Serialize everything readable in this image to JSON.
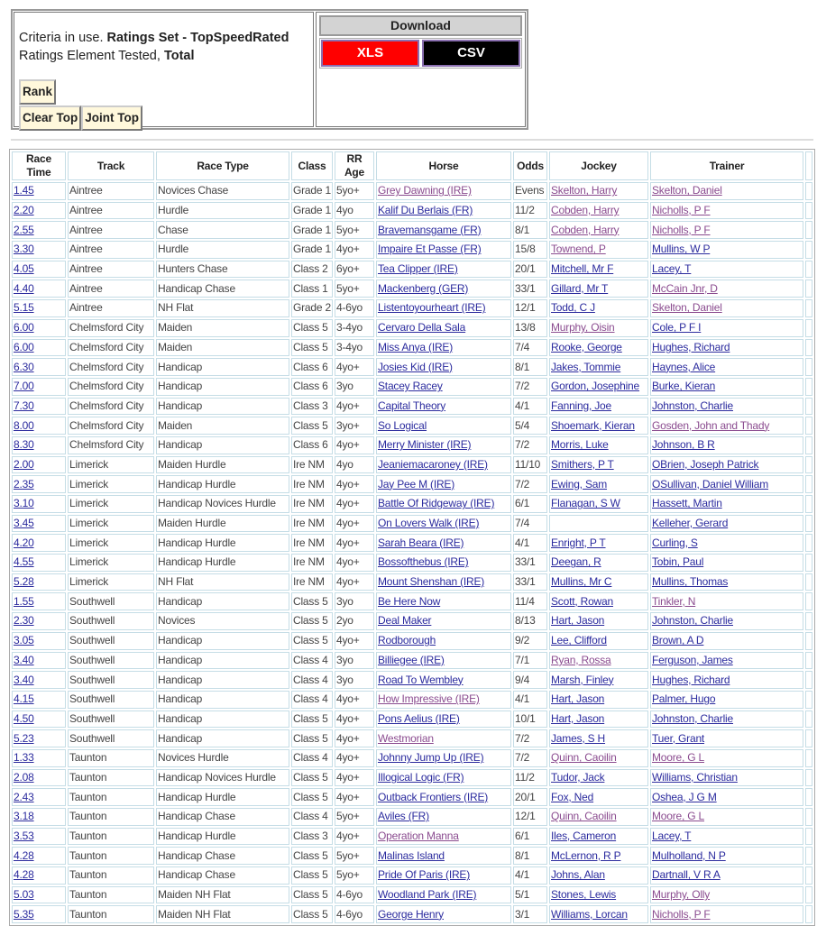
{
  "criteria": {
    "prefix": "Criteria in use.",
    "ratings_set": "Ratings Set - TopSpeedRated",
    "element_label": "Ratings Element Tested,",
    "element_value": "Total"
  },
  "buttons": {
    "rank": "Rank",
    "clear_top": "Clear Top",
    "joint_top": "Joint Top"
  },
  "download": {
    "title": "Download",
    "xls": "XLS",
    "csv": "CSV",
    "xls_color": "#ff0000",
    "csv_color": "#000000"
  },
  "table": {
    "headers": [
      "Race Time",
      "Track",
      "Race Type",
      "Class",
      "RR Age",
      "Horse",
      "Odds",
      "Jockey",
      "Trainer"
    ],
    "link_colors": {
      "unvisited": "#2b2b9e",
      "visited": "#8a4b8f"
    },
    "rows": [
      {
        "c": [
          "1.45",
          "Aintree",
          "Novices Chase",
          "Grade 1",
          "5yo+",
          "Grey Dawning (IRE)",
          "Evens",
          "Skelton, Harry",
          "Skelton, Daniel"
        ],
        "visited": "hjt"
      },
      {
        "c": [
          "2.20",
          "Aintree",
          "Hurdle",
          "Grade 1",
          "4yo",
          "Kalif Du Berlais (FR)",
          "11/2",
          "Cobden, Harry",
          "Nicholls, P F"
        ],
        "visited": "jt"
      },
      {
        "c": [
          "2.55",
          "Aintree",
          "Chase",
          "Grade 1",
          "5yo+",
          "Bravemansgame (FR)",
          "8/1",
          "Cobden, Harry",
          "Nicholls, P F"
        ],
        "visited": "jt"
      },
      {
        "c": [
          "3.30",
          "Aintree",
          "Hurdle",
          "Grade 1",
          "4yo+",
          "Impaire Et Passe (FR)",
          "15/8",
          "Townend, P",
          "Mullins, W P"
        ],
        "visited": "j"
      },
      {
        "c": [
          "4.05",
          "Aintree",
          "Hunters Chase",
          "Class 2",
          "6yo+",
          "Tea Clipper (IRE)",
          "20/1",
          "Mitchell, Mr F",
          "Lacey, T"
        ],
        "visited": ""
      },
      {
        "c": [
          "4.40",
          "Aintree",
          "Handicap Chase",
          "Class 1",
          "5yo+",
          "Mackenberg (GER)",
          "33/1",
          "Gillard, Mr T",
          "McCain Jnr, D"
        ],
        "visited": "t"
      },
      {
        "c": [
          "5.15",
          "Aintree",
          "NH Flat",
          "Grade 2",
          "4-6yo",
          "Listentoyourheart (IRE)",
          "12/1",
          "Todd, C J",
          "Skelton, Daniel"
        ],
        "visited": "t"
      },
      {
        "c": [
          "6.00",
          "Chelmsford City",
          "Maiden",
          "Class 5",
          "3-4yo",
          "Cervaro Della Sala",
          "13/8",
          "Murphy, Oisin",
          "Cole, P F I"
        ],
        "visited": "j"
      },
      {
        "c": [
          "6.00",
          "Chelmsford City",
          "Maiden",
          "Class 5",
          "3-4yo",
          "Miss Anya (IRE)",
          "7/4",
          "Rooke, George",
          "Hughes, Richard"
        ],
        "visited": ""
      },
      {
        "c": [
          "6.30",
          "Chelmsford City",
          "Handicap",
          "Class 6",
          "4yo+",
          "Josies Kid (IRE)",
          "8/1",
          "Jakes, Tommie",
          "Haynes, Alice"
        ],
        "visited": ""
      },
      {
        "c": [
          "7.00",
          "Chelmsford City",
          "Handicap",
          "Class 6",
          "3yo",
          "Stacey Racey",
          "7/2",
          "Gordon, Josephine",
          "Burke, Kieran"
        ],
        "visited": ""
      },
      {
        "c": [
          "7.30",
          "Chelmsford City",
          "Handicap",
          "Class 3",
          "4yo+",
          "Capital Theory",
          "4/1",
          "Fanning, Joe",
          "Johnston, Charlie"
        ],
        "visited": ""
      },
      {
        "c": [
          "8.00",
          "Chelmsford City",
          "Maiden",
          "Class 5",
          "3yo+",
          "So Logical",
          "5/4",
          "Shoemark, Kieran",
          "Gosden, John and Thady"
        ],
        "visited": "t"
      },
      {
        "c": [
          "8.30",
          "Chelmsford City",
          "Handicap",
          "Class 6",
          "4yo+",
          "Merry Minister (IRE)",
          "7/2",
          "Morris, Luke",
          "Johnson, B R"
        ],
        "visited": ""
      },
      {
        "c": [
          "2.00",
          "Limerick",
          "Maiden Hurdle",
          "Ire NM",
          "4yo",
          "Jeaniemacaroney (IRE)",
          "11/10",
          "Smithers, P T",
          "OBrien, Joseph Patrick"
        ],
        "visited": ""
      },
      {
        "c": [
          "2.35",
          "Limerick",
          "Handicap Hurdle",
          "Ire NM",
          "4yo+",
          "Jay Pee M (IRE)",
          "7/2",
          "Ewing, Sam",
          "OSullivan, Daniel William"
        ],
        "visited": ""
      },
      {
        "c": [
          "3.10",
          "Limerick",
          "Handicap Novices Hurdle",
          "Ire NM",
          "4yo+",
          "Battle Of Ridgeway (IRE)",
          "6/1",
          "Flanagan, S W",
          "Hassett, Martin"
        ],
        "visited": ""
      },
      {
        "c": [
          "3.45",
          "Limerick",
          "Maiden Hurdle",
          "Ire NM",
          "4yo+",
          "On Lovers Walk (IRE)",
          "7/4",
          "",
          "Kelleher, Gerard"
        ],
        "visited": ""
      },
      {
        "c": [
          "4.20",
          "Limerick",
          "Handicap Hurdle",
          "Ire NM",
          "4yo+",
          "Sarah Beara (IRE)",
          "4/1",
          "Enright, P T",
          "Curling, S"
        ],
        "visited": ""
      },
      {
        "c": [
          "4.55",
          "Limerick",
          "Handicap Hurdle",
          "Ire NM",
          "4yo+",
          "Bossofthebus (IRE)",
          "33/1",
          "Deegan, R",
          "Tobin, Paul"
        ],
        "visited": ""
      },
      {
        "c": [
          "5.28",
          "Limerick",
          "NH Flat",
          "Ire NM",
          "4yo+",
          "Mount Shenshan (IRE)",
          "33/1",
          "Mullins, Mr C",
          "Mullins, Thomas"
        ],
        "visited": ""
      },
      {
        "c": [
          "1.55",
          "Southwell",
          "Handicap",
          "Class 5",
          "3yo",
          "Be Here Now",
          "11/4",
          "Scott, Rowan",
          "Tinkler, N"
        ],
        "visited": "t"
      },
      {
        "c": [
          "2.30",
          "Southwell",
          "Novices",
          "Class 5",
          "2yo",
          "Deal Maker",
          "8/13",
          "Hart, Jason",
          "Johnston, Charlie"
        ],
        "visited": ""
      },
      {
        "c": [
          "3.05",
          "Southwell",
          "Handicap",
          "Class 5",
          "4yo+",
          "Rodborough",
          "9/2",
          "Lee, Clifford",
          "Brown, A D"
        ],
        "visited": ""
      },
      {
        "c": [
          "3.40",
          "Southwell",
          "Handicap",
          "Class 4",
          "3yo",
          "Billiegee (IRE)",
          "7/1",
          "Ryan, Rossa",
          "Ferguson, James"
        ],
        "visited": "j"
      },
      {
        "c": [
          "3.40",
          "Southwell",
          "Handicap",
          "Class 4",
          "3yo",
          "Road To Wembley",
          "9/4",
          "Marsh, Finley",
          "Hughes, Richard"
        ],
        "visited": ""
      },
      {
        "c": [
          "4.15",
          "Southwell",
          "Handicap",
          "Class 4",
          "4yo+",
          "How Impressive (IRE)",
          "4/1",
          "Hart, Jason",
          "Palmer, Hugo"
        ],
        "visited": "h"
      },
      {
        "c": [
          "4.50",
          "Southwell",
          "Handicap",
          "Class 5",
          "4yo+",
          "Pons Aelius (IRE)",
          "10/1",
          "Hart, Jason",
          "Johnston, Charlie"
        ],
        "visited": ""
      },
      {
        "c": [
          "5.23",
          "Southwell",
          "Handicap",
          "Class 5",
          "4yo+",
          "Westmorian",
          "7/2",
          "James, S H",
          "Tuer, Grant"
        ],
        "visited": "h"
      },
      {
        "c": [
          "1.33",
          "Taunton",
          "Novices Hurdle",
          "Class 4",
          "4yo+",
          "Johnny Jump Up (IRE)",
          "7/2",
          "Quinn, Caoilin",
          "Moore, G L"
        ],
        "visited": "jt"
      },
      {
        "c": [
          "2.08",
          "Taunton",
          "Handicap Novices Hurdle",
          "Class 5",
          "4yo+",
          "Illogical Logic (FR)",
          "11/2",
          "Tudor, Jack",
          "Williams, Christian"
        ],
        "visited": ""
      },
      {
        "c": [
          "2.43",
          "Taunton",
          "Handicap Hurdle",
          "Class 5",
          "4yo+",
          "Outback Frontiers (IRE)",
          "20/1",
          "Fox, Ned",
          "Oshea, J G M"
        ],
        "visited": ""
      },
      {
        "c": [
          "3.18",
          "Taunton",
          "Handicap Chase",
          "Class 4",
          "5yo+",
          "Aviles (FR)",
          "12/1",
          "Quinn, Caoilin",
          "Moore, G L"
        ],
        "visited": "jt"
      },
      {
        "c": [
          "3.53",
          "Taunton",
          "Handicap Hurdle",
          "Class 3",
          "4yo+",
          "Operation Manna",
          "6/1",
          "Iles, Cameron",
          "Lacey, T"
        ],
        "visited": "h"
      },
      {
        "c": [
          "4.28",
          "Taunton",
          "Handicap Chase",
          "Class 5",
          "5yo+",
          "Malinas Island",
          "8/1",
          "McLernon, R P",
          "Mulholland, N P"
        ],
        "visited": ""
      },
      {
        "c": [
          "4.28",
          "Taunton",
          "Handicap Chase",
          "Class 5",
          "5yo+",
          "Pride Of Paris (IRE)",
          "4/1",
          "Johns, Alan",
          "Dartnall, V R A"
        ],
        "visited": ""
      },
      {
        "c": [
          "5.03",
          "Taunton",
          "Maiden NH Flat",
          "Class 5",
          "4-6yo",
          "Woodland Park (IRE)",
          "5/1",
          "Stones, Lewis",
          "Murphy, Olly"
        ],
        "visited": "t"
      },
      {
        "c": [
          "5.35",
          "Taunton",
          "Maiden NH Flat",
          "Class 5",
          "4-6yo",
          "George Henry",
          "3/1",
          "Williams, Lorcan",
          "Nicholls, P F"
        ],
        "visited": "t"
      }
    ]
  }
}
